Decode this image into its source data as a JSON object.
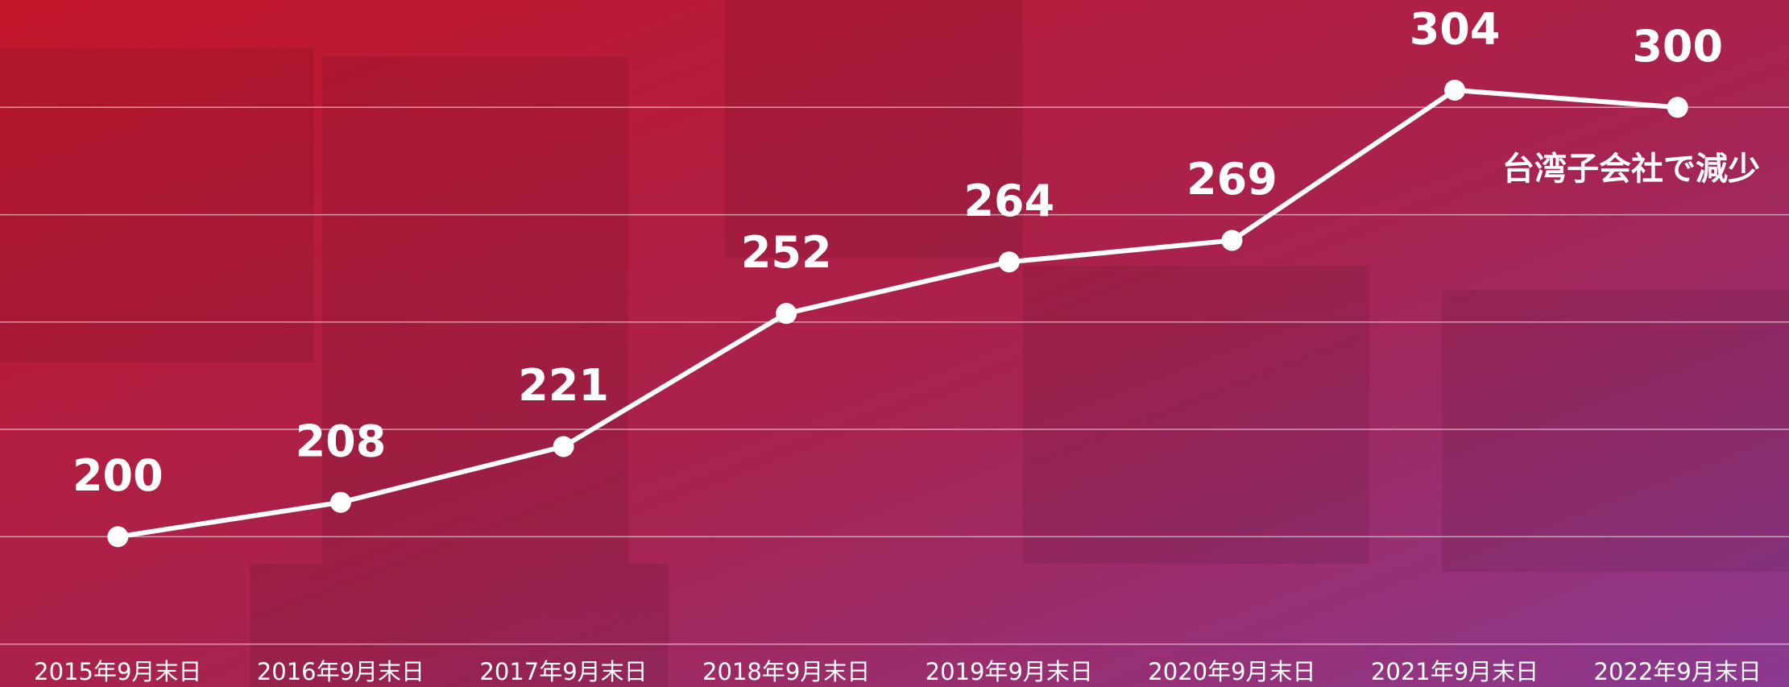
{
  "chart_data": {
    "type": "line",
    "categories": [
      "2015年9月末日",
      "2016年9月末日",
      "2017年9月末日",
      "2018年9月末日",
      "2019年9月末日",
      "2020年9月末日",
      "2021年9月末日",
      "2022年9月末日"
    ],
    "values": [
      200,
      208,
      221,
      252,
      264,
      269,
      304,
      300
    ],
    "color": "#ffffff",
    "ylim": [
      165,
      325
    ],
    "yticks": [
      175,
      200,
      225,
      250,
      275,
      300
    ],
    "grid": true,
    "annotation": "台湾子会社で減少"
  }
}
